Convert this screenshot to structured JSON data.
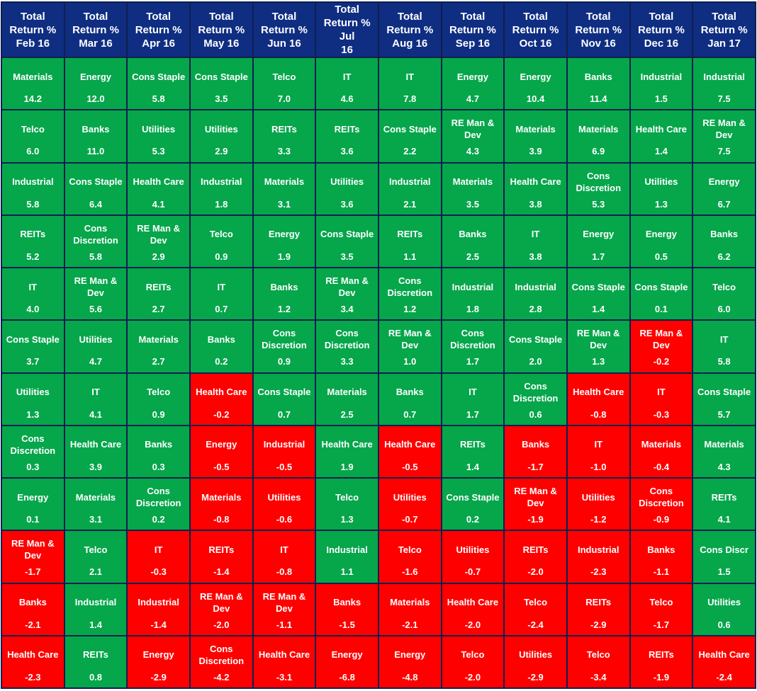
{
  "chart_data": {
    "type": "table",
    "colors": {
      "header": "#0f2e82",
      "positive": "#06a64b",
      "negative": "#ff0000",
      "border": "#0f1f4f"
    },
    "columns": [
      "Total\nReturn %\nFeb 16",
      "Total\nReturn %\nMar 16",
      "Total\nReturn %\nApr 16",
      "Total\nReturn %\nMay 16",
      "Total\nReturn %\nJun 16",
      "Total\nReturn % Jul\n16",
      "Total\nReturn %\nAug 16",
      "Total\nReturn %\nSep 16",
      "Total\nReturn %\nOct 16",
      "Total\nReturn %\nNov 16",
      "Total\nReturn %\nDec 16",
      "Total\nReturn %\nJan 17"
    ],
    "rows": [
      [
        {
          "sector": "Materials",
          "value": "14.2"
        },
        {
          "sector": "Energy",
          "value": "12.0"
        },
        {
          "sector": "Cons Staple",
          "value": "5.8"
        },
        {
          "sector": "Cons Staple",
          "value": "3.5"
        },
        {
          "sector": "Telco",
          "value": "7.0"
        },
        {
          "sector": "IT",
          "value": "4.6"
        },
        {
          "sector": "IT",
          "value": "7.8"
        },
        {
          "sector": "Energy",
          "value": "4.7"
        },
        {
          "sector": "Energy",
          "value": "10.4"
        },
        {
          "sector": "Banks",
          "value": "11.4"
        },
        {
          "sector": "Industrial",
          "value": "1.5"
        },
        {
          "sector": "Industrial",
          "value": "7.5"
        }
      ],
      [
        {
          "sector": "Telco",
          "value": "6.0"
        },
        {
          "sector": "Banks",
          "value": "11.0"
        },
        {
          "sector": "Utilities",
          "value": "5.3"
        },
        {
          "sector": "Utilities",
          "value": "2.9"
        },
        {
          "sector": "REITs",
          "value": "3.3"
        },
        {
          "sector": "REITs",
          "value": "3.6"
        },
        {
          "sector": "Cons Staple",
          "value": "2.2"
        },
        {
          "sector": "RE Man &\nDev",
          "value": "4.3"
        },
        {
          "sector": "Materials",
          "value": "3.9"
        },
        {
          "sector": "Materials",
          "value": "6.9"
        },
        {
          "sector": "Health Care",
          "value": "1.4"
        },
        {
          "sector": "RE Man &\nDev",
          "value": "7.5"
        }
      ],
      [
        {
          "sector": "Industrial",
          "value": "5.8"
        },
        {
          "sector": "Cons Staple",
          "value": "6.4"
        },
        {
          "sector": "Health Care",
          "value": "4.1"
        },
        {
          "sector": "Industrial",
          "value": "1.8"
        },
        {
          "sector": "Materials",
          "value": "3.1"
        },
        {
          "sector": "Utilities",
          "value": "3.6"
        },
        {
          "sector": "Industrial",
          "value": "2.1"
        },
        {
          "sector": "Materials",
          "value": "3.5"
        },
        {
          "sector": "Health Care",
          "value": "3.8"
        },
        {
          "sector": "Cons\nDiscretion",
          "value": "5.3"
        },
        {
          "sector": "Utilities",
          "value": "1.3"
        },
        {
          "sector": "Energy",
          "value": "6.7"
        }
      ],
      [
        {
          "sector": "REITs",
          "value": "5.2"
        },
        {
          "sector": "Cons\nDiscretion",
          "value": "5.8"
        },
        {
          "sector": "RE Man &\nDev",
          "value": "2.9"
        },
        {
          "sector": "Telco",
          "value": "0.9"
        },
        {
          "sector": "Energy",
          "value": "1.9"
        },
        {
          "sector": "Cons Staple",
          "value": "3.5"
        },
        {
          "sector": "REITs",
          "value": "1.1"
        },
        {
          "sector": "Banks",
          "value": "2.5"
        },
        {
          "sector": "IT",
          "value": "3.8"
        },
        {
          "sector": "Energy",
          "value": "1.7"
        },
        {
          "sector": "Energy",
          "value": "0.5"
        },
        {
          "sector": "Banks",
          "value": "6.2"
        }
      ],
      [
        {
          "sector": "IT",
          "value": "4.0"
        },
        {
          "sector": "RE Man &\nDev",
          "value": "5.6"
        },
        {
          "sector": "REITs",
          "value": "2.7"
        },
        {
          "sector": "IT",
          "value": "0.7"
        },
        {
          "sector": "Banks",
          "value": "1.2"
        },
        {
          "sector": "RE Man &\nDev",
          "value": "3.4"
        },
        {
          "sector": "Cons\nDiscretion",
          "value": "1.2"
        },
        {
          "sector": "Industrial",
          "value": "1.8"
        },
        {
          "sector": "Industrial",
          "value": "2.8"
        },
        {
          "sector": "Cons Staple",
          "value": "1.4"
        },
        {
          "sector": "Cons Staple",
          "value": "0.1"
        },
        {
          "sector": "Telco",
          "value": "6.0"
        }
      ],
      [
        {
          "sector": "Cons Staple",
          "value": "3.7"
        },
        {
          "sector": "Utilities",
          "value": "4.7"
        },
        {
          "sector": "Materials",
          "value": "2.7"
        },
        {
          "sector": "Banks",
          "value": "0.2"
        },
        {
          "sector": "Cons\nDiscretion",
          "value": "0.9"
        },
        {
          "sector": "Cons\nDiscretion",
          "value": "3.3"
        },
        {
          "sector": "RE Man &\nDev",
          "value": "1.0"
        },
        {
          "sector": "Cons\nDiscretion",
          "value": "1.7"
        },
        {
          "sector": "Cons Staple",
          "value": "2.0"
        },
        {
          "sector": "RE Man &\nDev",
          "value": "1.3"
        },
        {
          "sector": "RE Man &\nDev",
          "value": "-0.2"
        },
        {
          "sector": "IT",
          "value": "5.8"
        }
      ],
      [
        {
          "sector": "Utilities",
          "value": "1.3"
        },
        {
          "sector": "IT",
          "value": "4.1"
        },
        {
          "sector": "Telco",
          "value": "0.9"
        },
        {
          "sector": "Health Care",
          "value": "-0.2"
        },
        {
          "sector": "Cons Staple",
          "value": "0.7"
        },
        {
          "sector": "Materials",
          "value": "2.5"
        },
        {
          "sector": "Banks",
          "value": "0.7"
        },
        {
          "sector": "IT",
          "value": "1.7"
        },
        {
          "sector": "Cons\nDiscretion",
          "value": "0.6"
        },
        {
          "sector": "Health Care",
          "value": "-0.8"
        },
        {
          "sector": "IT",
          "value": "-0.3"
        },
        {
          "sector": "Cons Staple",
          "value": "5.7"
        }
      ],
      [
        {
          "sector": "Cons\nDiscretion",
          "value": "0.3"
        },
        {
          "sector": "Health Care",
          "value": "3.9"
        },
        {
          "sector": "Banks",
          "value": "0.3"
        },
        {
          "sector": "Energy",
          "value": "-0.5"
        },
        {
          "sector": "Industrial",
          "value": "-0.5"
        },
        {
          "sector": "Health Care",
          "value": "1.9"
        },
        {
          "sector": "Health Care",
          "value": "-0.5"
        },
        {
          "sector": "REITs",
          "value": "1.4"
        },
        {
          "sector": "Banks",
          "value": "-1.7"
        },
        {
          "sector": "IT",
          "value": "-1.0"
        },
        {
          "sector": "Materials",
          "value": "-0.4"
        },
        {
          "sector": "Materials",
          "value": "4.3"
        }
      ],
      [
        {
          "sector": "Energy",
          "value": "0.1"
        },
        {
          "sector": "Materials",
          "value": "3.1"
        },
        {
          "sector": "Cons\nDiscretion",
          "value": "0.2"
        },
        {
          "sector": "Materials",
          "value": "-0.8"
        },
        {
          "sector": "Utilities",
          "value": "-0.6"
        },
        {
          "sector": "Telco",
          "value": "1.3"
        },
        {
          "sector": "Utilities",
          "value": "-0.7"
        },
        {
          "sector": "Cons Staple",
          "value": "0.2"
        },
        {
          "sector": "RE Man &\nDev",
          "value": "-1.9"
        },
        {
          "sector": "Utilities",
          "value": "-1.2"
        },
        {
          "sector": "Cons\nDiscretion",
          "value": "-0.9"
        },
        {
          "sector": "REITs",
          "value": "4.1"
        }
      ],
      [
        {
          "sector": "RE Man &\nDev",
          "value": "-1.7"
        },
        {
          "sector": "Telco",
          "value": "2.1"
        },
        {
          "sector": "IT",
          "value": "-0.3"
        },
        {
          "sector": "REITs",
          "value": "-1.4"
        },
        {
          "sector": "IT",
          "value": "-0.8"
        },
        {
          "sector": "Industrial",
          "value": "1.1"
        },
        {
          "sector": "Telco",
          "value": "-1.6"
        },
        {
          "sector": "Utilities",
          "value": "-0.7"
        },
        {
          "sector": "REITs",
          "value": "-2.0"
        },
        {
          "sector": "Industrial",
          "value": "-2.3"
        },
        {
          "sector": "Banks",
          "value": "-1.1"
        },
        {
          "sector": "Cons Discr",
          "value": "1.5"
        }
      ],
      [
        {
          "sector": "Banks",
          "value": "-2.1"
        },
        {
          "sector": "Industrial",
          "value": "1.4"
        },
        {
          "sector": "Industrial",
          "value": "-1.4"
        },
        {
          "sector": "RE Man &\nDev",
          "value": "-2.0"
        },
        {
          "sector": "RE Man &\nDev",
          "value": "-1.1"
        },
        {
          "sector": "Banks",
          "value": "-1.5"
        },
        {
          "sector": "Materials",
          "value": "-2.1"
        },
        {
          "sector": "Health Care",
          "value": "-2.0"
        },
        {
          "sector": "Telco",
          "value": "-2.4"
        },
        {
          "sector": "REITs",
          "value": "-2.9"
        },
        {
          "sector": "Telco",
          "value": "-1.7"
        },
        {
          "sector": "Utilities",
          "value": "0.6"
        }
      ],
      [
        {
          "sector": "Health Care",
          "value": "-2.3"
        },
        {
          "sector": "REITs",
          "value": "0.8"
        },
        {
          "sector": "Energy",
          "value": "-2.9"
        },
        {
          "sector": "Cons\nDiscretion",
          "value": "-4.2"
        },
        {
          "sector": "Health Care",
          "value": "-3.1"
        },
        {
          "sector": "Energy",
          "value": "-6.8"
        },
        {
          "sector": "Energy",
          "value": "-4.8"
        },
        {
          "sector": "Telco",
          "value": "-2.0"
        },
        {
          "sector": "Utilities",
          "value": "-2.9"
        },
        {
          "sector": "Telco",
          "value": "-3.4"
        },
        {
          "sector": "REITs",
          "value": "-1.9"
        },
        {
          "sector": "Health Care",
          "value": "-2.4"
        }
      ]
    ]
  }
}
